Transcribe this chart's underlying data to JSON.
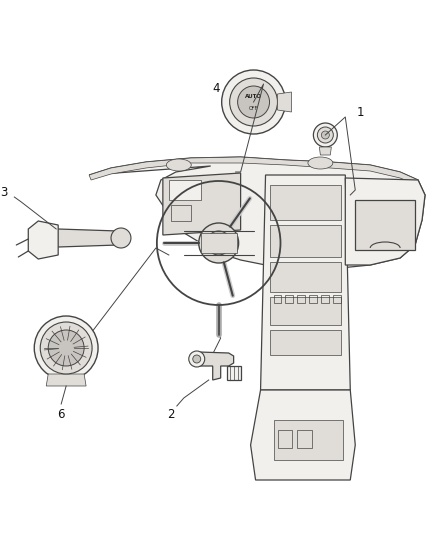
{
  "background_color": "#ffffff",
  "fig_width": 4.38,
  "fig_height": 5.33,
  "dpi": 100,
  "line_color": "#444444",
  "fill_light": "#f2f0ed",
  "fill_medium": "#e0ddd8",
  "fill_dark": "#c8c5c0",
  "lw_main": 0.9,
  "lw_thin": 0.5,
  "lw_thick": 1.3
}
